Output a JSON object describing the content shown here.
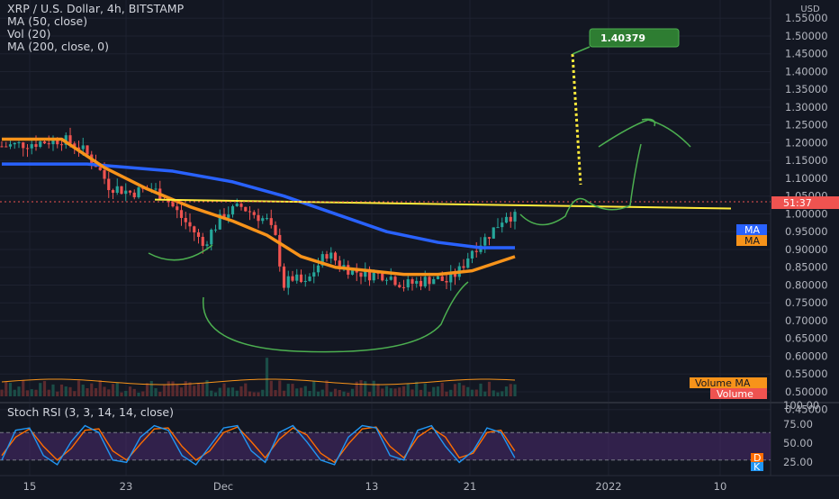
{
  "header": {
    "symbol_line": "XRP / U.S. Dollar, 4h, BITSTAMP",
    "indicators": [
      "MA (50, close)",
      "Vol (20)",
      "MA (200, close, 0)"
    ],
    "stoch_label": "Stoch RSI (3, 3, 14, 14, close)"
  },
  "price_axis": {
    "unit": "USD",
    "ticks": [
      "1.55000",
      "1.50000",
      "1.45000",
      "1.40000",
      "1.35000",
      "1.30000",
      "1.25000",
      "1.20000",
      "1.15000",
      "1.10000",
      "1.05000",
      "1.00000",
      "0.95000",
      "0.90000",
      "0.85000",
      "0.80000",
      "0.75000",
      "0.70000",
      "0.65000",
      "0.60000",
      "0.55000",
      "0.50000",
      "0.45000"
    ],
    "current_price_label": "51:37"
  },
  "stoch_axis": {
    "ticks": [
      "100.00",
      "75.00",
      "50.00",
      "25.00"
    ]
  },
  "time_axis": {
    "ticks": [
      "15",
      "23",
      "Dec",
      "13",
      "21",
      "2022",
      "10"
    ]
  },
  "tags": {
    "target": "1.40379",
    "ma": "MA",
    "volume_ma": "Volume MA",
    "volume": "Volume",
    "stoch_d": "D",
    "stoch_k": "K"
  },
  "colors": {
    "background": "#131722",
    "up_candle": "#26a69a",
    "down_candle": "#ef5350",
    "ma50": "#f7931a",
    "ma200": "#2962ff",
    "resistance": "#ffeb3b",
    "target": "#2e7d32",
    "drawing": "#4caf50",
    "stoch_k": "#2196f3",
    "stoch_d": "#ff6d00",
    "stoch_band": "#4a2a6e"
  },
  "chart_data": {
    "type": "candlestick",
    "title": "XRP / U.S. Dollar, 4h, BITSTAMP",
    "ylim": [
      0.42,
      1.57
    ],
    "price_path": [
      [
        0,
        1.19
      ],
      [
        8,
        1.2
      ],
      [
        14,
        1.21
      ],
      [
        18,
        1.19
      ],
      [
        22,
        1.14
      ],
      [
        25,
        1.08
      ],
      [
        30,
        1.06
      ],
      [
        35,
        1.07
      ],
      [
        38,
        1.05
      ],
      [
        42,
        0.99
      ],
      [
        45,
        0.95
      ],
      [
        47,
        0.91
      ],
      [
        49,
        0.95
      ],
      [
        52,
        1.0
      ],
      [
        56,
        1.02
      ],
      [
        59,
        1.0
      ],
      [
        62,
        0.98
      ],
      [
        64,
        0.93
      ],
      [
        66,
        0.8
      ],
      [
        68,
        0.82
      ],
      [
        71,
        0.8
      ],
      [
        73,
        0.84
      ],
      [
        76,
        0.89
      ],
      [
        79,
        0.86
      ],
      [
        82,
        0.84
      ],
      [
        86,
        0.83
      ],
      [
        90,
        0.83
      ],
      [
        94,
        0.8
      ],
      [
        98,
        0.81
      ],
      [
        101,
        0.82
      ],
      [
        104,
        0.81
      ],
      [
        107,
        0.84
      ],
      [
        110,
        0.9
      ],
      [
        113,
        0.93
      ],
      [
        116,
        0.97
      ],
      [
        118,
        1.0
      ],
      [
        120,
        0.99
      ]
    ],
    "ma50": [
      [
        0,
        1.21
      ],
      [
        14,
        1.21
      ],
      [
        24,
        1.13
      ],
      [
        34,
        1.07
      ],
      [
        44,
        1.02
      ],
      [
        54,
        0.98
      ],
      [
        62,
        0.94
      ],
      [
        70,
        0.88
      ],
      [
        78,
        0.85
      ],
      [
        86,
        0.84
      ],
      [
        94,
        0.83
      ],
      [
        102,
        0.83
      ],
      [
        110,
        0.84
      ],
      [
        120,
        0.88
      ]
    ],
    "ma200": [
      [
        0,
        1.14
      ],
      [
        20,
        1.14
      ],
      [
        40,
        1.12
      ],
      [
        54,
        1.09
      ],
      [
        66,
        1.05
      ],
      [
        78,
        1.0
      ],
      [
        90,
        0.95
      ],
      [
        102,
        0.92
      ],
      [
        112,
        0.905
      ],
      [
        120,
        0.905
      ]
    ],
    "resistance": [
      [
        35,
        1.04
      ],
      [
        170,
        1.015
      ]
    ],
    "target_price": 1.40379,
    "stoch_rsi": {
      "ylim": [
        0,
        100
      ],
      "k": [
        20,
        85,
        90,
        30,
        10,
        60,
        95,
        80,
        20,
        15,
        70,
        95,
        85,
        30,
        10,
        50,
        90,
        95,
        40,
        15,
        80,
        95,
        60,
        20,
        10,
        70,
        95,
        90,
        30,
        20,
        85,
        95,
        50,
        15,
        40,
        90,
        80,
        25
      ],
      "d": [
        30,
        70,
        88,
        50,
        20,
        45,
        85,
        88,
        40,
        20,
        55,
        88,
        90,
        50,
        20,
        40,
        80,
        92,
        60,
        25,
        65,
        90,
        75,
        35,
        15,
        55,
        88,
        92,
        50,
        25,
        70,
        90,
        70,
        25,
        35,
        80,
        85,
        40
      ]
    }
  }
}
